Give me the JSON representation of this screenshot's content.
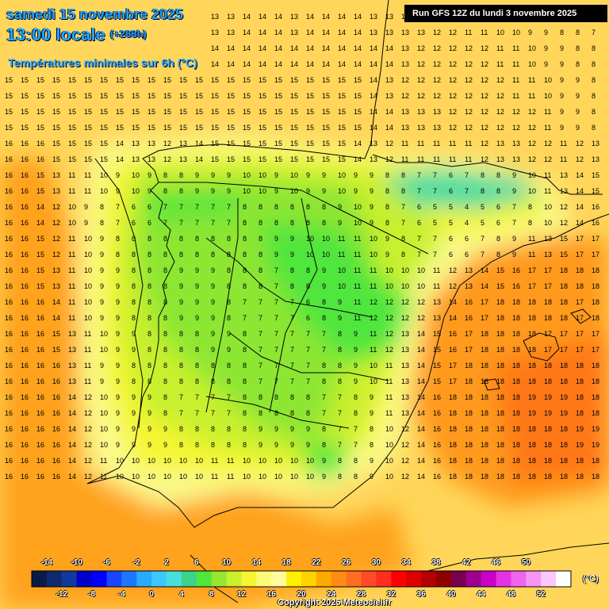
{
  "header": {
    "date": "samedi 15 novembre 2025",
    "time": "13:00 locale",
    "offset": "(+288h)",
    "variable": "Températures minimales sur 6h (°C)"
  },
  "run_info": "Run GFS 12Z du lundi 3 novembre 2025",
  "copyright": "Copyright 2025 Meteociel.fr",
  "colorbar": {
    "unit": "(°C)",
    "labels_top": [
      "-14",
      "-10",
      "-6",
      "-2",
      "2",
      "6",
      "10",
      "14",
      "18",
      "22",
      "26",
      "30",
      "34",
      "38",
      "42",
      "46",
      "50"
    ],
    "labels_bottom": [
      "-12",
      "-8",
      "-4",
      "0",
      "4",
      "8",
      "12",
      "16",
      "20",
      "24",
      "28",
      "32",
      "36",
      "40",
      "44",
      "48",
      "52"
    ],
    "colors": [
      "#0a1a4a",
      "#0f2a6e",
      "#123a9e",
      "#0000c8",
      "#0000ff",
      "#1846ff",
      "#1e78ff",
      "#28aaff",
      "#3cc8ff",
      "#46e0dc",
      "#3cd28c",
      "#50e63c",
      "#96e632",
      "#c8f02d",
      "#f5f532",
      "#fafa78",
      "#fffaa0",
      "#fff000",
      "#ffd200",
      "#ffaa00",
      "#ff8c14",
      "#ff6e1e",
      "#ff4b28",
      "#ff2d1e",
      "#ff0000",
      "#dc0000",
      "#b40000",
      "#8c0000",
      "#780050",
      "#a00090",
      "#c800c8",
      "#e632e6",
      "#f064f0",
      "#f596f5",
      "#fac8fa",
      "#ffffff"
    ]
  },
  "legend_colors": {
    "sea_warm": "#ffd65a",
    "orange": "#ff9a1e",
    "deep_orange": "#ff7814",
    "yellow": "#f5f532",
    "pale_yellow": "#fafa8c",
    "yellowgreen": "#c8f02d",
    "green": "#8ce632",
    "bright_green": "#50e63c",
    "teal": "#46dca0"
  },
  "grid_values": [
    [
      "14",
      "14",
      "14",
      "14",
      "14",
      "14",
      "14",
      "14",
      "14",
      "14",
      "14",
      "13",
      "13",
      "13",
      "13",
      "14",
      "14",
      "14",
      "13",
      "14",
      "14",
      "14",
      "14",
      "13",
      "13",
      "13",
      "13",
      "12",
      "12",
      "11",
      "11",
      "10",
      "10",
      "9",
      "9",
      "8",
      "8",
      "7",
      "7"
    ],
    [
      "14",
      "14",
      "14",
      "14",
      "14",
      "14",
      "14",
      "14",
      "14",
      "14",
      "14",
      "14",
      "14",
      "14",
      "14",
      "14",
      "14",
      "14",
      "14",
      "14",
      "14",
      "14",
      "14",
      "14",
      "14",
      "13",
      "12",
      "12",
      "12",
      "12",
      "12",
      "11",
      "11",
      "10",
      "9",
      "9",
      "8",
      "8",
      "9"
    ],
    [
      "15",
      "15",
      "15",
      "15",
      "15",
      "15",
      "15",
      "15",
      "15",
      "15",
      "15",
      "15",
      "15",
      "15",
      "15",
      "15",
      "15",
      "15",
      "15",
      "15",
      "15",
      "15",
      "15",
      "14",
      "13",
      "12",
      "12",
      "12",
      "12",
      "12",
      "12",
      "12",
      "11",
      "11",
      "10",
      "9",
      "9",
      "8",
      "7"
    ],
    [
      "15",
      "15",
      "15",
      "15",
      "15",
      "15",
      "15",
      "15",
      "15",
      "15",
      "15",
      "15",
      "15",
      "15",
      "15",
      "15",
      "15",
      "15",
      "15",
      "15",
      "15",
      "15",
      "15",
      "14",
      "14",
      "13",
      "13",
      "13",
      "12",
      "12",
      "12",
      "12",
      "12",
      "12",
      "11",
      "9",
      "9",
      "8",
      "7"
    ],
    [
      "16",
      "16",
      "16",
      "15",
      "15",
      "15",
      "15",
      "14",
      "13",
      "13",
      "12",
      "13",
      "14",
      "15",
      "15",
      "15",
      "15",
      "15",
      "15",
      "15",
      "15",
      "15",
      "14",
      "13",
      "12",
      "11",
      "11",
      "11",
      "11",
      "11",
      "12",
      "13",
      "13",
      "12",
      "12",
      "11",
      "12",
      "13",
      "15"
    ],
    [
      "16",
      "16",
      "15",
      "13",
      "11",
      "11",
      "10",
      "9",
      "10",
      "9",
      "8",
      "8",
      "9",
      "9",
      "9",
      "10",
      "10",
      "9",
      "10",
      "9",
      "9",
      "10",
      "9",
      "9",
      "8",
      "8",
      "7",
      "7",
      "6",
      "7",
      "8",
      "8",
      "9",
      "10",
      "11",
      "13",
      "14",
      "15",
      "16"
    ],
    [
      "16",
      "16",
      "14",
      "12",
      "10",
      "9",
      "8",
      "7",
      "6",
      "6",
      "7",
      "7",
      "7",
      "7",
      "7",
      "8",
      "8",
      "8",
      "8",
      "8",
      "8",
      "9",
      "10",
      "9",
      "8",
      "7",
      "6",
      "5",
      "5",
      "4",
      "5",
      "6",
      "7",
      "8",
      "10",
      "12",
      "14",
      "16",
      "17"
    ],
    [
      "16",
      "16",
      "15",
      "12",
      "11",
      "10",
      "9",
      "8",
      "8",
      "8",
      "8",
      "8",
      "8",
      "8",
      "8",
      "8",
      "8",
      "9",
      "9",
      "10",
      "10",
      "11",
      "11",
      "10",
      "9",
      "8",
      "7",
      "7",
      "6",
      "6",
      "7",
      "8",
      "9",
      "11",
      "13",
      "15",
      "17",
      "17",
      "17"
    ],
    [
      "16",
      "16",
      "15",
      "13",
      "11",
      "10",
      "9",
      "9",
      "8",
      "8",
      "8",
      "9",
      "9",
      "9",
      "8",
      "8",
      "8",
      "7",
      "8",
      "8",
      "9",
      "10",
      "11",
      "11",
      "10",
      "10",
      "10",
      "11",
      "12",
      "13",
      "14",
      "15",
      "16",
      "17",
      "17",
      "18",
      "18",
      "18",
      "18"
    ],
    [
      "16",
      "16",
      "16",
      "14",
      "11",
      "10",
      "9",
      "9",
      "8",
      "8",
      "8",
      "9",
      "9",
      "9",
      "8",
      "7",
      "7",
      "7",
      "7",
      "6",
      "8",
      "9",
      "11",
      "12",
      "12",
      "12",
      "12",
      "13",
      "14",
      "16",
      "17",
      "18",
      "18",
      "18",
      "18",
      "18",
      "17",
      "18",
      "18"
    ],
    [
      "16",
      "16",
      "16",
      "15",
      "13",
      "11",
      "10",
      "9",
      "9",
      "8",
      "8",
      "8",
      "8",
      "9",
      "9",
      "8",
      "7",
      "7",
      "7",
      "7",
      "7",
      "8",
      "9",
      "11",
      "12",
      "13",
      "14",
      "15",
      "16",
      "17",
      "18",
      "18",
      "18",
      "18",
      "17",
      "17",
      "17",
      "17",
      "17"
    ],
    [
      "16",
      "16",
      "16",
      "16",
      "13",
      "11",
      "9",
      "9",
      "8",
      "8",
      "8",
      "8",
      "8",
      "8",
      "8",
      "8",
      "7",
      "7",
      "7",
      "7",
      "8",
      "8",
      "9",
      "10",
      "11",
      "13",
      "14",
      "15",
      "17",
      "18",
      "18",
      "18",
      "18",
      "18",
      "18",
      "18",
      "18",
      "18",
      "18"
    ],
    [
      "16",
      "16",
      "16",
      "16",
      "14",
      "12",
      "10",
      "9",
      "9",
      "9",
      "8",
      "7",
      "7",
      "7",
      "7",
      "8",
      "8",
      "8",
      "8",
      "8",
      "7",
      "7",
      "8",
      "9",
      "11",
      "13",
      "14",
      "16",
      "18",
      "18",
      "18",
      "18",
      "18",
      "19",
      "19",
      "19",
      "18",
      "18",
      "18"
    ],
    [
      "16",
      "16",
      "16",
      "16",
      "14",
      "12",
      "10",
      "9",
      "9",
      "9",
      "9",
      "8",
      "8",
      "8",
      "8",
      "8",
      "9",
      "9",
      "9",
      "9",
      "8",
      "7",
      "7",
      "8",
      "10",
      "12",
      "14",
      "16",
      "18",
      "18",
      "18",
      "18",
      "18",
      "18",
      "18",
      "18",
      "19",
      "19",
      "18"
    ],
    [
      "16",
      "16",
      "16",
      "16",
      "14",
      "12",
      "11",
      "10",
      "10",
      "10",
      "10",
      "10",
      "10",
      "11",
      "11",
      "10",
      "10",
      "10",
      "10",
      "10",
      "9",
      "8",
      "8",
      "9",
      "10",
      "12",
      "14",
      "16",
      "18",
      "18",
      "18",
      "18",
      "18",
      "18",
      "18",
      "18",
      "18",
      "18",
      "18"
    ]
  ]
}
